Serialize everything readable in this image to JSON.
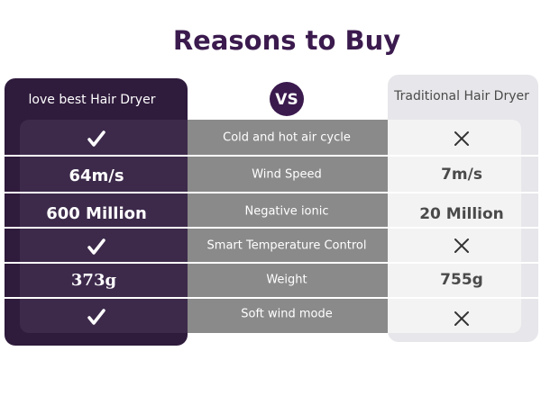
{
  "title": "Reasons to Buy",
  "vs": "VS",
  "columns": {
    "left": "love best Hair Dryer",
    "right": "Traditional Hair Dryer"
  },
  "rows": [
    {
      "feature": "Cold and hot air cycle"
    },
    {
      "left": "64m/s",
      "feature": "Wind Speed",
      "right": "7m/s"
    },
    {
      "left": "600 Million",
      "feature": "Negative ionic",
      "right": "20 Million"
    },
    {
      "feature": "Smart Temperature Control"
    },
    {
      "left": "373g",
      "feature": "Weight",
      "right": "755g"
    },
    {
      "feature": "Soft wind mode"
    }
  ]
}
